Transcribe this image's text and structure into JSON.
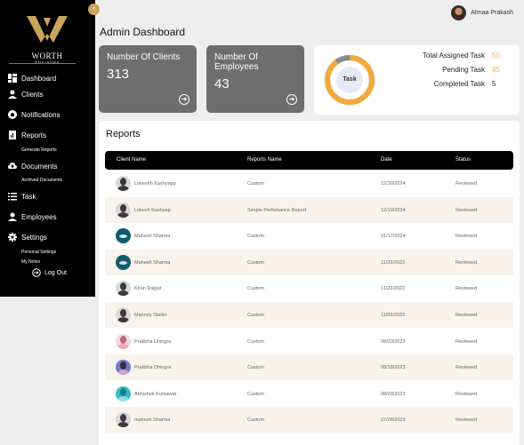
{
  "sidebar": {
    "logo": {
      "word": "WORTH",
      "sub": "ADVISORS"
    },
    "items": [
      {
        "label": "Dashboard",
        "icon": "dashboard-icon"
      },
      {
        "label": "Clients",
        "icon": "user-icon"
      },
      {
        "label": "Notifications",
        "icon": "bell-icon"
      },
      {
        "label": "Reports",
        "icon": "reports-icon"
      },
      {
        "label": "Documents",
        "icon": "cloud-icon"
      },
      {
        "label": "Task",
        "icon": "list-icon"
      },
      {
        "label": "Employees",
        "icon": "users-icon"
      },
      {
        "label": "Settings",
        "icon": "gear-icon"
      }
    ],
    "sub": {
      "generate_reports": "Generate Reports",
      "archived_documents": "Archived Documents",
      "personal_settings": "Personal Settings",
      "my_notes": "My Notes"
    },
    "logout": "Log Out"
  },
  "header": {
    "user_name": "Atmaa Prakash",
    "title": "Admin Dashboard"
  },
  "stats": [
    {
      "label": "Number Of Clients",
      "value": "313"
    },
    {
      "label": "Number Of Employees",
      "value": "43"
    }
  ],
  "tasks": {
    "donut_label": "Task",
    "total_label": "Total Assigned Task",
    "total_value": "50",
    "pending_label": "Pending Task",
    "pending_value": "45",
    "completed_label": "Completed Task",
    "completed_value": "5",
    "colors": {
      "pending": "#f2a93b",
      "completed": "#8a8a8a",
      "value_accent": "#f2a93b"
    }
  },
  "reports": {
    "title": "Reports",
    "columns": [
      "Client Name",
      "Reports Name",
      "Date",
      "Status"
    ],
    "rows": [
      {
        "client": "Lokeshh Kashyapp",
        "report": "Custom",
        "date": "12/30/2024",
        "status": "Reviewed",
        "avatar": "gray"
      },
      {
        "client": "Lokesh Kashyap",
        "report": "Simple Perfomance Report",
        "date": "12/19/2024",
        "status": "Reviewed",
        "avatar": "gray"
      },
      {
        "client": "Mahesh Sharma",
        "report": "Custom",
        "date": "01/17/2024",
        "status": "Reviewed",
        "avatar": "teal"
      },
      {
        "client": "Mahesh Sharma",
        "report": "Custom",
        "date": "11/23/2023",
        "status": "Reviewed",
        "avatar": "teal"
      },
      {
        "client": "Kiran Rajput",
        "report": "Custom",
        "date": "11/22/2023",
        "status": "Reviewed",
        "avatar": "gray"
      },
      {
        "client": "Manndy Staller",
        "report": "Custom",
        "date": "11/03/2023",
        "status": "Reviewed",
        "avatar": "gray"
      },
      {
        "client": "Pratibha Dhingra",
        "report": "Custom",
        "date": "08/23/2023",
        "status": "Reviewed",
        "avatar": "pink"
      },
      {
        "client": "Pratibha Dhingra",
        "report": "Custom",
        "date": "08/18/2023",
        "status": "Reviewed",
        "avatar": "blue"
      },
      {
        "client": "Abhishek Kumawat",
        "report": "Custom",
        "date": "08/03/2023",
        "status": "Reviewed",
        "avatar": "cyan"
      },
      {
        "client": "mahesh Sharma",
        "report": "Custom",
        "date": "07/28/2023",
        "status": "Reviewed",
        "avatar": "gray"
      }
    ]
  }
}
